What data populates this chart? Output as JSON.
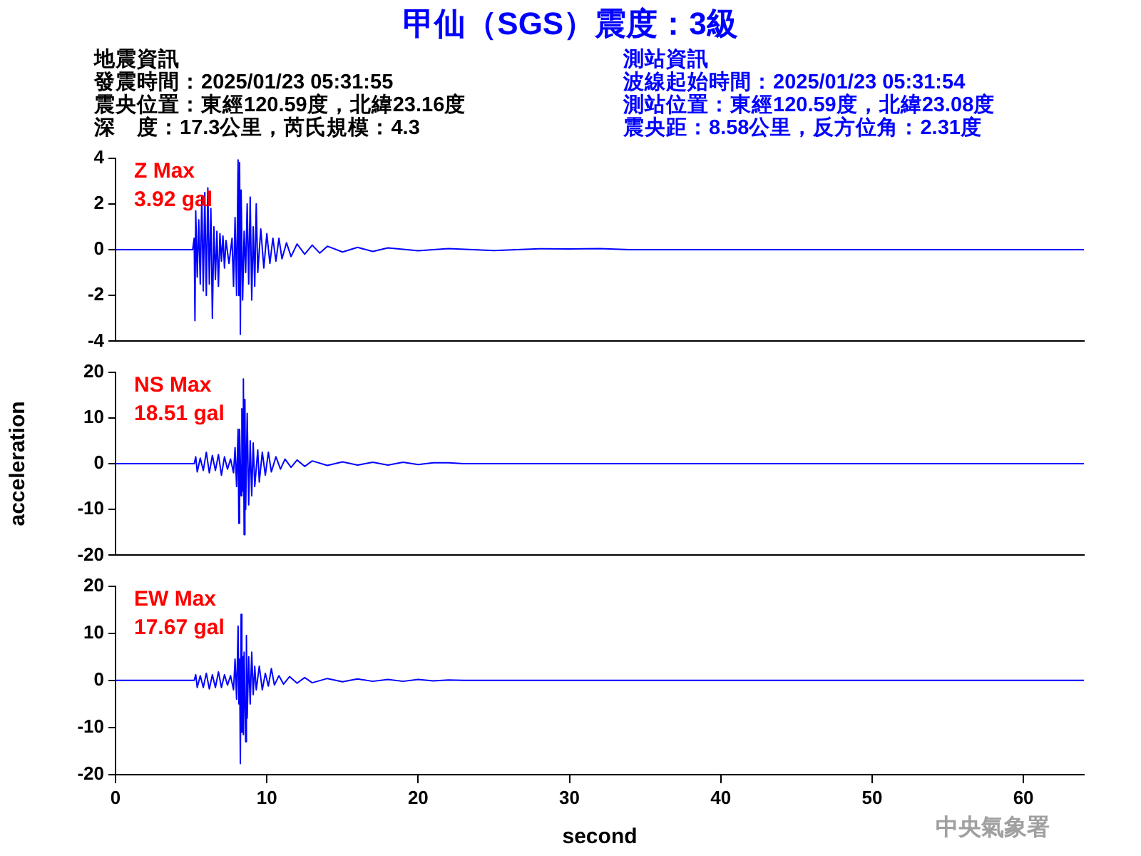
{
  "chart_data": [
    {
      "type": "line",
      "title": "甲仙（SGS）震度：3級",
      "annotations": [
        "Z Max",
        "3.92 gal",
        "地震資訊",
        "發震時間：2025/01/23 05:31:55",
        "震央位置：東經120.59度，北緯23.16度",
        "深　度：17.3公里，芮氏規模：4.3",
        "測站資訊",
        "波線起始時間：2025/01/23 05:31:54",
        "測站位置：東經120.59度，北緯23.08度",
        "震央距：8.58公里，反方位角：2.31度"
      ],
      "xlim": [
        0,
        64
      ],
      "xticks": [
        0,
        10,
        20,
        30,
        40,
        50,
        60
      ],
      "ylim": [
        -4,
        4
      ],
      "yticks": [
        -4,
        -2,
        0,
        2,
        4
      ],
      "tick_labels": "y",
      "grid": false,
      "legend": false,
      "marker": "none",
      "line_style": "solid",
      "series": [
        {
          "color": "#0000ff",
          "x": [
            0,
            5.1,
            5.2,
            5.25,
            5.3,
            5.4,
            5.5,
            5.6,
            5.7,
            5.8,
            5.9,
            6.0,
            6.1,
            6.2,
            6.3,
            6.4,
            6.5,
            6.6,
            6.7,
            6.8,
            6.9,
            7.0,
            7.1,
            7.2,
            7.3,
            7.5,
            7.7,
            7.8,
            7.9,
            8.0,
            8.1,
            8.15,
            8.2,
            8.25,
            8.3,
            8.4,
            8.5,
            8.6,
            8.7,
            8.8,
            8.9,
            9.0,
            9.1,
            9.2,
            9.3,
            9.4,
            9.6,
            9.8,
            10.0,
            10.2,
            10.4,
            10.6,
            10.8,
            11.0,
            11.3,
            11.6,
            12.0,
            12.5,
            13,
            13.5,
            14,
            15,
            16,
            17,
            18,
            20,
            22,
            25,
            28,
            30,
            32,
            34,
            64
          ],
          "values": [
            0,
            0,
            0.5,
            -3.1,
            1.7,
            -1.2,
            1.3,
            -1.5,
            2.3,
            -1.8,
            2.5,
            -2.0,
            2.7,
            -1.5,
            1.8,
            -3.0,
            1.0,
            -1.3,
            0.8,
            -1.6,
            0.7,
            -0.5,
            0.6,
            -0.8,
            0.4,
            -0.6,
            0.5,
            -1.6,
            1.4,
            -2.0,
            3.92,
            -2.0,
            3.8,
            -3.7,
            2.6,
            -2.2,
            0.8,
            -1.0,
            2.0,
            -1.5,
            2.3,
            -2.2,
            1.0,
            -1.6,
            2.0,
            -1.0,
            0.9,
            -0.8,
            0.7,
            -0.6,
            0.5,
            -0.5,
            0.5,
            -0.4,
            0.3,
            -0.3,
            0.25,
            -0.2,
            0.2,
            -0.15,
            0.15,
            -0.1,
            0.1,
            -0.08,
            0.08,
            -0.05,
            0.05,
            -0.04,
            0.04,
            0.03,
            0.05,
            0,
            0
          ]
        }
      ]
    },
    {
      "type": "line",
      "ylabel": "acceleration",
      "annotations": [
        "NS Max",
        "18.51 gal"
      ],
      "xlim": [
        0,
        64
      ],
      "xticks": [
        0,
        10,
        20,
        30,
        40,
        50,
        60
      ],
      "ylim": [
        -20,
        20
      ],
      "yticks": [
        -20,
        -10,
        0,
        10,
        20
      ],
      "tick_labels": "y",
      "grid": false,
      "legend": false,
      "marker": "none",
      "line_style": "solid",
      "series": [
        {
          "color": "#0000ff",
          "x": [
            0,
            5.2,
            5.3,
            5.4,
            5.6,
            5.8,
            6.0,
            6.2,
            6.4,
            6.6,
            6.8,
            7.0,
            7.2,
            7.4,
            7.6,
            7.8,
            7.9,
            8.0,
            8.1,
            8.15,
            8.2,
            8.3,
            8.35,
            8.4,
            8.45,
            8.5,
            8.55,
            8.6,
            8.7,
            8.8,
            8.9,
            9.0,
            9.1,
            9.2,
            9.4,
            9.5,
            9.7,
            9.9,
            10.1,
            10.3,
            10.6,
            10.9,
            11.2,
            11.6,
            12,
            12.5,
            13,
            14,
            15,
            16,
            17,
            18,
            19,
            20,
            21,
            22,
            23,
            64
          ],
          "values": [
            0,
            0,
            1.5,
            -1.8,
            1.2,
            -1.5,
            2.5,
            -2.0,
            1.8,
            -1.5,
            2.0,
            -2.5,
            1.5,
            -1.2,
            1.0,
            -2.0,
            3.5,
            -5.0,
            7.5,
            -13,
            7.5,
            -7,
            12,
            -6,
            18.51,
            -15.5,
            14,
            -10,
            11,
            -9,
            5,
            -7,
            4.5,
            -5,
            3,
            -4,
            2.5,
            -2.5,
            2.5,
            -1.8,
            1.5,
            -1.2,
            1.0,
            -0.8,
            0.8,
            -0.6,
            0.6,
            -0.4,
            0.4,
            -0.3,
            0.3,
            -0.3,
            0.3,
            -0.2,
            0.2,
            0.2,
            0,
            0
          ]
        }
      ]
    },
    {
      "type": "line",
      "xlabel": "second",
      "annotations": [
        "EW Max",
        "17.67 gal",
        "中央氣象署"
      ],
      "xlim": [
        0,
        64
      ],
      "xticks": [
        0,
        10,
        20,
        30,
        40,
        50,
        60
      ],
      "ylim": [
        -20,
        20
      ],
      "yticks": [
        -20,
        -10,
        0,
        10,
        20
      ],
      "grid": false,
      "legend": false,
      "marker": "none",
      "line_style": "solid",
      "series": [
        {
          "color": "#0000ff",
          "x": [
            0,
            5.2,
            5.3,
            5.4,
            5.6,
            5.8,
            6.0,
            6.2,
            6.4,
            6.6,
            6.8,
            7.0,
            7.2,
            7.4,
            7.6,
            7.8,
            7.9,
            8.0,
            8.1,
            8.15,
            8.2,
            8.25,
            8.3,
            8.35,
            8.4,
            8.45,
            8.5,
            8.6,
            8.65,
            8.7,
            8.8,
            8.9,
            9.0,
            9.1,
            9.2,
            9.3,
            9.5,
            9.7,
            9.9,
            10.1,
            10.3,
            10.5,
            10.8,
            11.1,
            11.5,
            12,
            12.5,
            13,
            14,
            15,
            16,
            17,
            18,
            19,
            20,
            21,
            22,
            23,
            64
          ],
          "values": [
            0,
            0,
            1.2,
            -1.5,
            1.0,
            -1.5,
            1.5,
            -1.8,
            1.2,
            -1.5,
            1.8,
            -1.5,
            1.2,
            -1.0,
            1.0,
            -2.0,
            4.5,
            -4.0,
            11.5,
            -5,
            4.5,
            -17.67,
            14,
            -11,
            5,
            -11.5,
            6,
            -13,
            9.5,
            -8,
            5,
            -5,
            6,
            -3,
            3,
            -2,
            3,
            -2,
            1.5,
            -1.2,
            2.5,
            -1.0,
            1.0,
            -0.8,
            0.8,
            -0.6,
            0.6,
            -0.5,
            0.4,
            -0.3,
            0.3,
            -0.2,
            0.2,
            -0.2,
            0.2,
            -0.1,
            0.1,
            0,
            0
          ]
        }
      ]
    }
  ]
}
